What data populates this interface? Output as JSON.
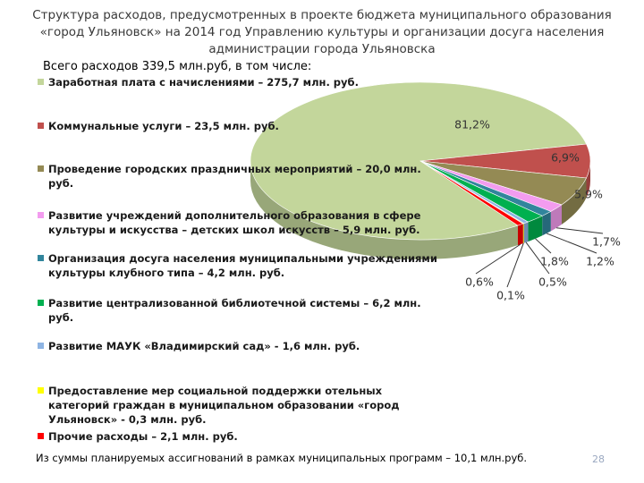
{
  "title": "Структура расходов, предусмотренных в проекте бюджета муниципального образования «город Ульяновск» на 2014 год Управлению культуры и организации досуга населения администрации города Ульяновска",
  "chart_data": {
    "type": "pie",
    "subtitle": "Всего расходов 339,5 млн.руб, в том числе:",
    "categories": [
      "Заработная плата с начислениями – 275,7 млн. руб.",
      "Коммунальные услуги – 23,5 млн. руб.",
      "Проведение городских праздничных мероприятий – 20,0 млн. руб.",
      "Развитие учреждений дополнительного образования в сфере культуры и искусства  – детских школ искусств – 5,9 млн. руб.",
      "Организация досуга населения муниципальными учреждениями культуры клубного типа – 4,2    млн. руб.",
      "Развитие централизованной библиотечной системы  – 6,2 млн. руб.",
      "Развитие МАУК «Владимирский сад» - 1,6 млн. руб.",
      "Предоставление мер социальной поддержки отельных категорий граждан в муниципальном образовании «город Ульяновск» - 0,3 млн. руб.",
      "Прочие расходы – 2,1 млн. руб."
    ],
    "values": [
      81.2,
      6.9,
      5.9,
      1.7,
      1.2,
      1.8,
      0.5,
      0.1,
      0.6
    ],
    "value_labels": [
      "81,2%",
      "6,9%",
      "5,9%",
      "1,7%",
      "1,2%",
      "1,8%",
      "0,5%",
      "0,1%",
      "0,6%"
    ],
    "colors": [
      "#c3d69b",
      "#c0504d",
      "#948a54",
      "#f39cef",
      "#31859c",
      "#00b050",
      "#8eb4e3",
      "#ffff00",
      "#ff0000"
    ]
  },
  "footer": "Из суммы планируемых ассигнований в рамках муниципальных программ – 10,1 млн.руб.",
  "page_number": "28"
}
